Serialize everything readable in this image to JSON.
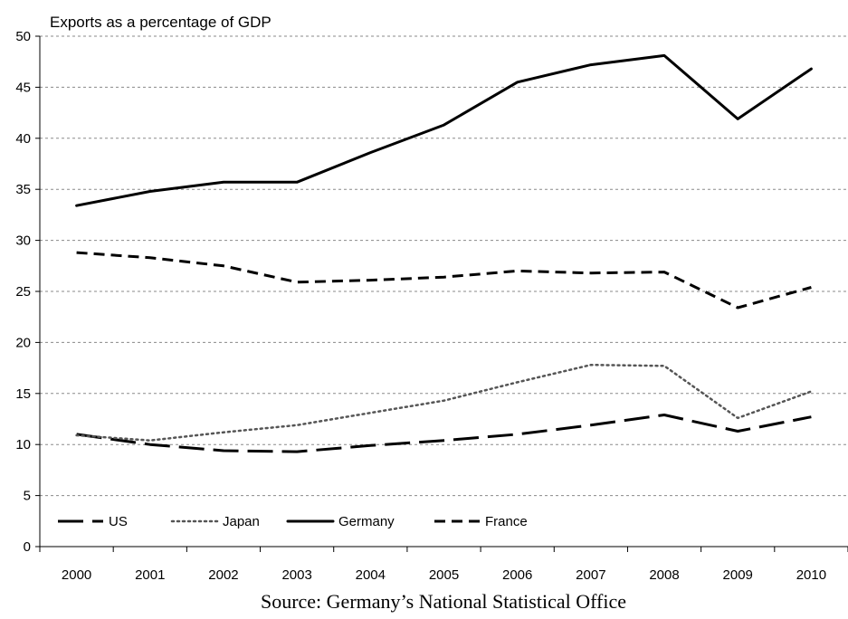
{
  "chart_data": {
    "type": "line",
    "title": "Exports as a percentage of GDP",
    "source": "Source: Germany’s National Statistical Office",
    "x": [
      "2000",
      "2001",
      "2002",
      "2003",
      "2004",
      "2005",
      "2006",
      "2007",
      "2008",
      "2009",
      "2010"
    ],
    "ylim": [
      0,
      50
    ],
    "yticks": [
      0,
      5,
      10,
      15,
      20,
      25,
      30,
      35,
      40,
      45,
      50
    ],
    "grid": true,
    "legend": "bottom-left",
    "series": [
      {
        "name": "US",
        "style": "long-dash",
        "color": "#000000",
        "values": [
          11.0,
          10.0,
          9.4,
          9.3,
          9.9,
          10.4,
          11.0,
          11.9,
          12.9,
          11.3,
          12.7
        ]
      },
      {
        "name": "Japan",
        "style": "dotted",
        "color": "#555555",
        "values": [
          10.9,
          10.4,
          11.2,
          11.9,
          13.1,
          14.3,
          16.1,
          17.8,
          17.7,
          12.6,
          15.2
        ]
      },
      {
        "name": "Germany",
        "style": "solid",
        "color": "#000000",
        "values": [
          33.4,
          34.8,
          35.7,
          35.7,
          38.6,
          41.3,
          45.5,
          47.2,
          48.1,
          41.9,
          46.8
        ]
      },
      {
        "name": "France",
        "style": "dash",
        "color": "#000000",
        "values": [
          28.8,
          28.3,
          27.5,
          25.9,
          26.1,
          26.4,
          27.0,
          26.8,
          26.9,
          23.4,
          25.4
        ]
      }
    ]
  }
}
